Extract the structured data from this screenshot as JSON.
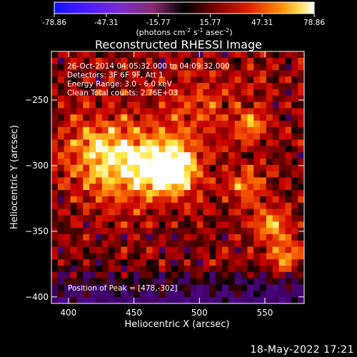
{
  "colorbar": {
    "tick_labels": [
      "-78.86",
      "-47.31",
      "-15.77",
      "15.77",
      "47.31",
      "78.86"
    ],
    "tick_values": [
      -78.86,
      -47.31,
      -15.77,
      15.77,
      47.31,
      78.86
    ],
    "range": [
      -78.86,
      78.86
    ],
    "units_prefix": "(photons cm",
    "units_exp1": "-2",
    "units_mid": " s",
    "units_exp2": "-1",
    "units_mid2": " asec",
    "units_exp3": "-2",
    "units_suffix": ")",
    "colormap": "red-temperature (blue-purple negative, black to red to yellow-white positive)"
  },
  "chart_data": {
    "type": "heatmap",
    "title": "Reconstructed RHESSI Image",
    "xlabel": "Heliocentric X (arcsec)",
    "ylabel": "Heliocentric Y (arcsec)",
    "xlim": [
      387,
      580
    ],
    "ylim": [
      -405,
      -213
    ],
    "x_ticks": [
      400,
      450,
      500,
      550
    ],
    "y_ticks": [
      -250,
      -300,
      -350,
      -400
    ],
    "peak": [
      478,
      -302
    ],
    "annotations": [
      "26-Oct-2014 04:05:32.000 to 04:09:32.000",
      "Detectors: 3F 6F 9F, Att 1",
      "Energy Range: 3.0 - 6.0 keV",
      "Clean      Total counts: 2.76E+03"
    ],
    "peak_label": "Position of Peak = [478,-302]"
  },
  "footer": {
    "date": "18-May-2022 17:21"
  }
}
